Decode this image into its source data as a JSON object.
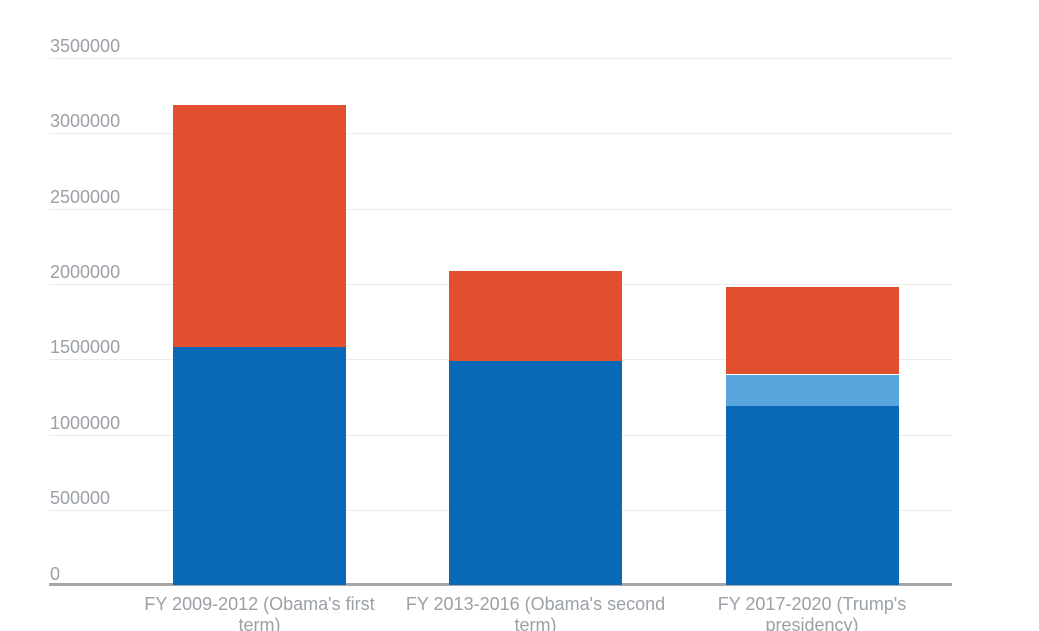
{
  "page": {
    "background": "#ffffff"
  },
  "chart_data": {
    "type": "bar",
    "stacked": true,
    "title": "",
    "xlabel": "",
    "ylabel": "",
    "legend": "none",
    "grid": true,
    "categories": [
      "FY 2009-2012 (Obama's first term)",
      "FY 2013-2016 (Obama's second term)",
      "FY 2017-2020 (Trump's presidency)"
    ],
    "category_lines": [
      [
        "FY 2009-2012 (Obama's first",
        "term)"
      ],
      [
        "FY 2013-2016 (Obama's second",
        "term)"
      ],
      [
        "FY 2017-2020 (Trump's",
        "presidency)"
      ]
    ],
    "series": [
      {
        "name": "blue",
        "color": "#0a69b7",
        "values": [
          1580000,
          1490000,
          1190000
        ]
      },
      {
        "name": "light-blue",
        "color": "#58a6dd",
        "values": [
          0,
          0,
          210000
        ]
      },
      {
        "name": "red",
        "color": "#e1502e",
        "values": [
          1610000,
          600000,
          580000
        ]
      }
    ],
    "totals": [
      3190000,
      2090000,
      1980000
    ],
    "y_ticks": [
      0,
      500000,
      1000000,
      1500000,
      2000000,
      2500000,
      3000000,
      3500000
    ],
    "ylim": [
      0,
      3500000
    ],
    "colors": {
      "grid": "#ececec",
      "baseline": "#a6a6a6",
      "axis_label": "#9aa0a6"
    }
  }
}
